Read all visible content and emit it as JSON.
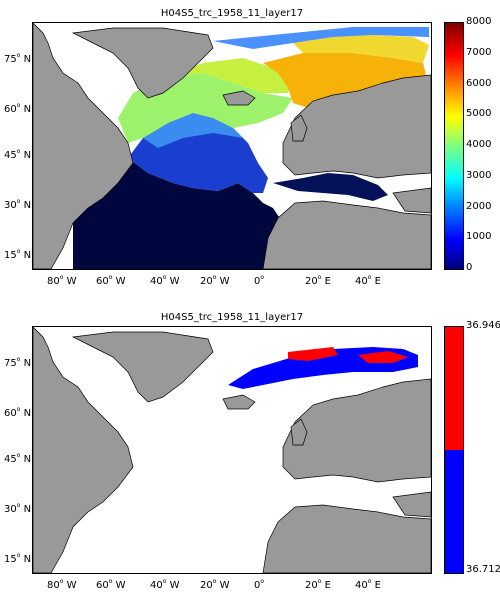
{
  "panels": [
    {
      "title": "H04S5_trc_1958_11_layer17",
      "colorbar": {
        "type": "continuous",
        "labels": [
          "8000",
          "7000",
          "6000",
          "5000",
          "4000",
          "3000",
          "2000",
          "1000",
          "0"
        ],
        "range": [
          0,
          8000
        ],
        "colormap": [
          "#00007f",
          "#0000ff",
          "#007fff",
          "#00ffff",
          "#7fff7f",
          "#ffff00",
          "#ff7f00",
          "#ff0000",
          "#7f0000"
        ]
      }
    },
    {
      "title": "H04S5_trc_1958_11_layer17",
      "colorbar": {
        "type": "binary",
        "top_label": "36.946",
        "bottom_label": "36.712",
        "colors": [
          "#ff0000",
          "#0000ff"
        ]
      }
    }
  ],
  "lat_labels": [
    "75",
    "60",
    "45",
    "30",
    "15"
  ],
  "lat_hemisphere": "N",
  "lon_labels": [
    {
      "deg": "80",
      "dir": "W"
    },
    {
      "deg": "60",
      "dir": "W"
    },
    {
      "deg": "40",
      "dir": "W"
    },
    {
      "deg": "20",
      "dir": "W"
    },
    {
      "deg": "0",
      "dir": ""
    },
    {
      "deg": "20",
      "dir": "E"
    },
    {
      "deg": "40",
      "dir": "E"
    }
  ],
  "colors": {
    "land": "#999999",
    "ocean_fill": "#ffffff",
    "coastline": "#000000"
  }
}
